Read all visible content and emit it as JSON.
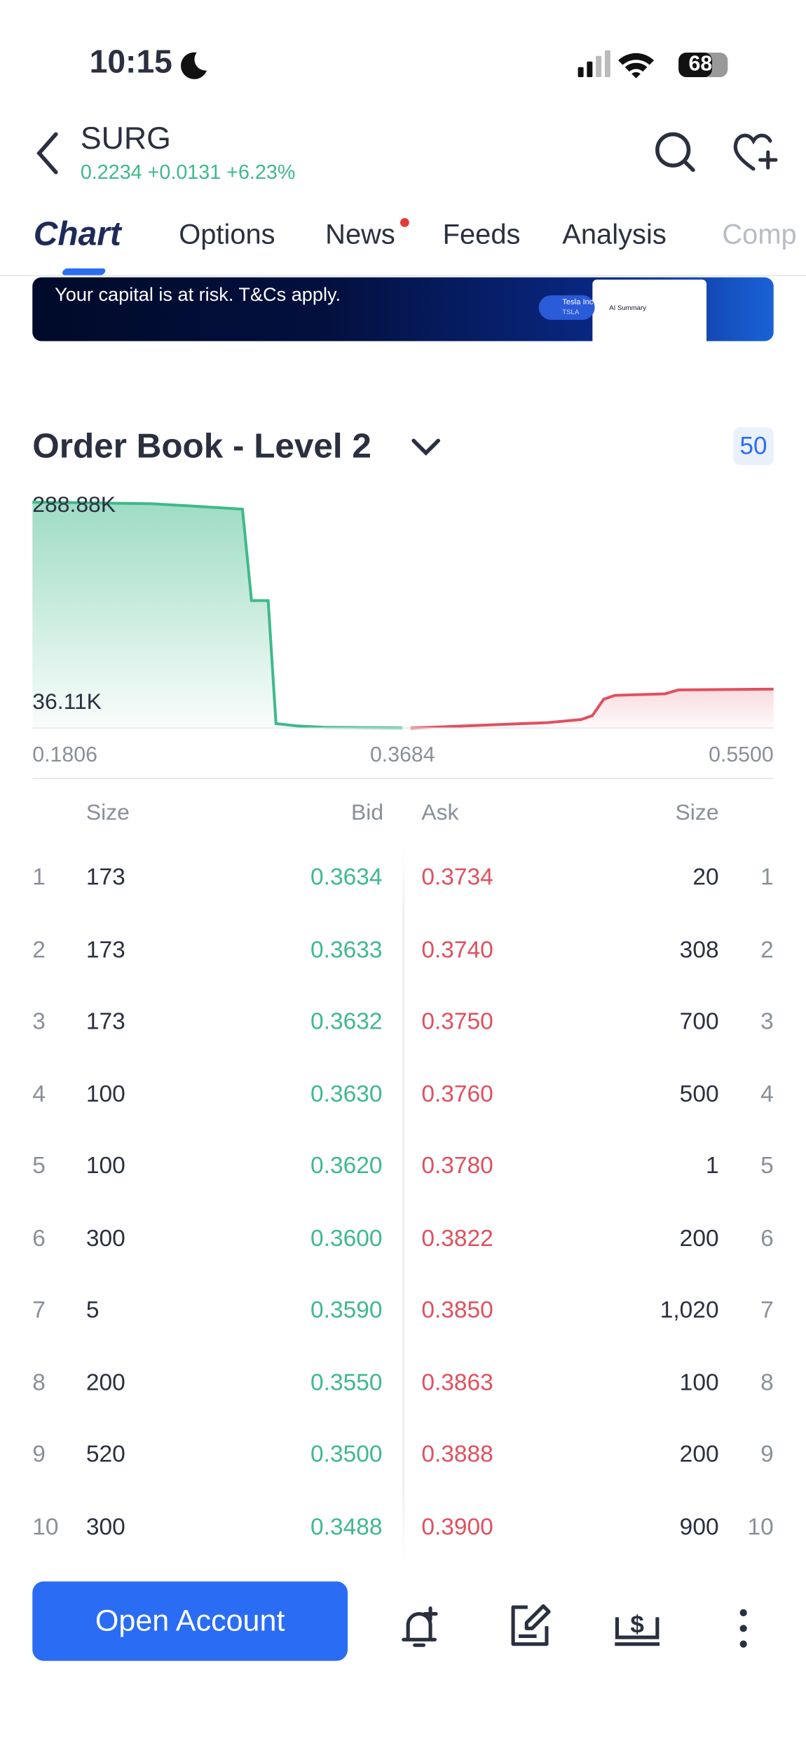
{
  "status": {
    "time": "10:15",
    "battery": "68"
  },
  "header": {
    "symbol": "SURG",
    "quote": "0.2234 +0.0131 +6.23%"
  },
  "tabs": [
    "Chart",
    "Options",
    "News",
    "Feeds",
    "Analysis",
    "Comp"
  ],
  "banner": {
    "text": "Your capital is at risk. T&Cs apply.",
    "card_title": "Tesla Inc",
    "card_ticker": "TSLA",
    "summary": "AI Summary"
  },
  "order_book": {
    "title": "Order Book - Level 2",
    "depth": "50"
  },
  "chart_data": {
    "type": "area",
    "xlim": [
      0.1806,
      0.55
    ],
    "ylim": [
      0,
      300000
    ],
    "xticks": [
      0.1806,
      0.3684,
      {
        "value": 0.55,
        "label": "0.5500"
      }
    ],
    "yticks": [
      {
        "value": 288880,
        "label": "288.88K"
      },
      {
        "value": 36110,
        "label": "36.11K"
      }
    ],
    "series": [
      {
        "name": "Bid",
        "color": "#3fb98b",
        "x": [
          0.1806,
          0.24,
          0.26,
          0.2853,
          0.2898,
          0.2981,
          0.302,
          0.312,
          0.326,
          0.365
        ],
        "values": [
          290000,
          288000,
          285000,
          281000,
          163600,
          163600,
          5700,
          2900,
          1000,
          173
        ]
      },
      {
        "name": "Ask",
        "color": "#e0505e",
        "x": [
          0.369,
          0.4374,
          0.4541,
          0.4597,
          0.4653,
          0.4709,
          0.4959,
          0.5026,
          0.55
        ],
        "values": [
          20,
          7000,
          11000,
          16000,
          37000,
          42000,
          44000,
          49000,
          50000
        ]
      }
    ]
  },
  "table": {
    "headers": [
      "Size",
      "Bid",
      "Ask",
      "Size"
    ],
    "rows": [
      [
        "1",
        "173",
        "0.3634",
        "0.3734",
        "20",
        "1"
      ],
      [
        "2",
        "173",
        "0.3633",
        "0.3740",
        "308",
        "2"
      ],
      [
        "3",
        "173",
        "0.3632",
        "0.3750",
        "700",
        "3"
      ],
      [
        "4",
        "100",
        "0.3630",
        "0.3760",
        "500",
        "4"
      ],
      [
        "5",
        "100",
        "0.3620",
        "0.3780",
        "1",
        "5"
      ],
      [
        "6",
        "300",
        "0.3600",
        "0.3822",
        "200",
        "6"
      ],
      [
        "7",
        "5",
        "0.3590",
        "0.3850",
        "1,020",
        "7"
      ],
      [
        "8",
        "200",
        "0.3550",
        "0.3863",
        "100",
        "8"
      ],
      [
        "9",
        "520",
        "0.3500",
        "0.3888",
        "200",
        "9"
      ],
      [
        "10",
        "300",
        "0.3488",
        "0.3900",
        "900",
        "10"
      ]
    ]
  },
  "footer": {
    "button": "Open Account"
  }
}
